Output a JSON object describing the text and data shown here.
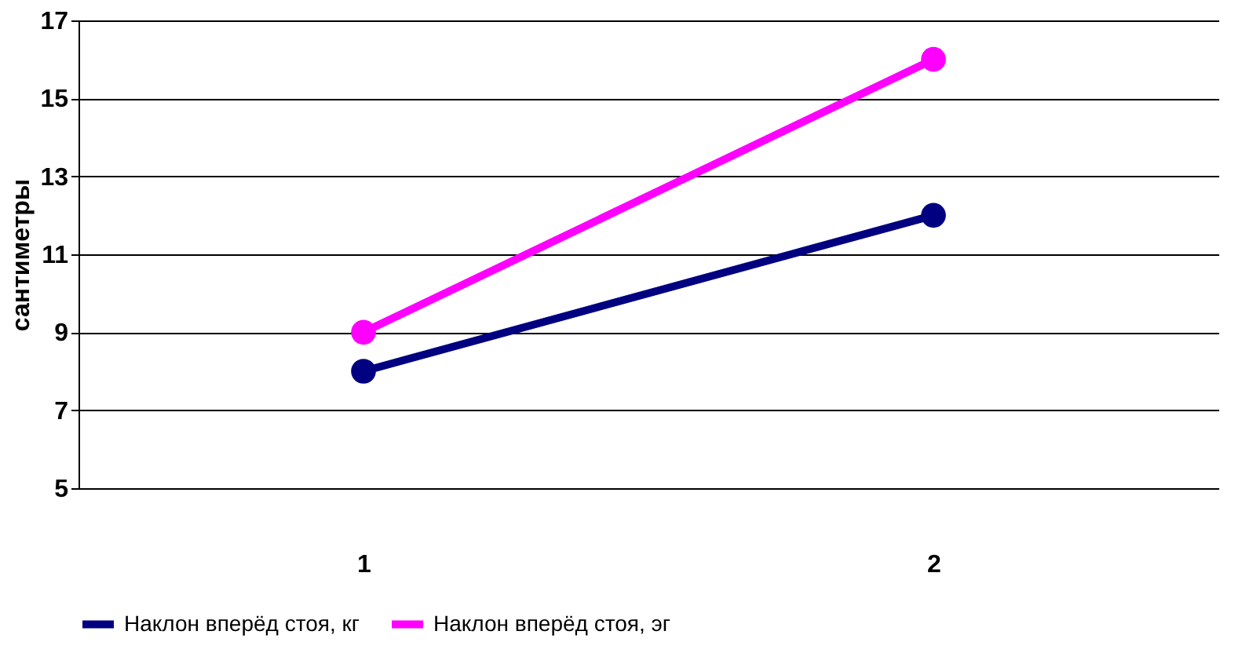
{
  "chart_data": {
    "type": "line",
    "ylabel": "сантиметры",
    "categories": [
      "1",
      "2"
    ],
    "series": [
      {
        "name": "Наклон вперёд стоя, кг",
        "color": "#000080",
        "values": [
          8,
          12
        ]
      },
      {
        "name": "Наклон вперёд стоя, эг",
        "color": "#ff00ff",
        "values": [
          9,
          16
        ]
      }
    ],
    "ylim": [
      5,
      17
    ],
    "yticks": [
      5,
      7,
      9,
      11,
      13,
      15,
      17
    ],
    "grid": "y",
    "legend": "bottom",
    "marker": "circle",
    "line_style": "solid"
  }
}
